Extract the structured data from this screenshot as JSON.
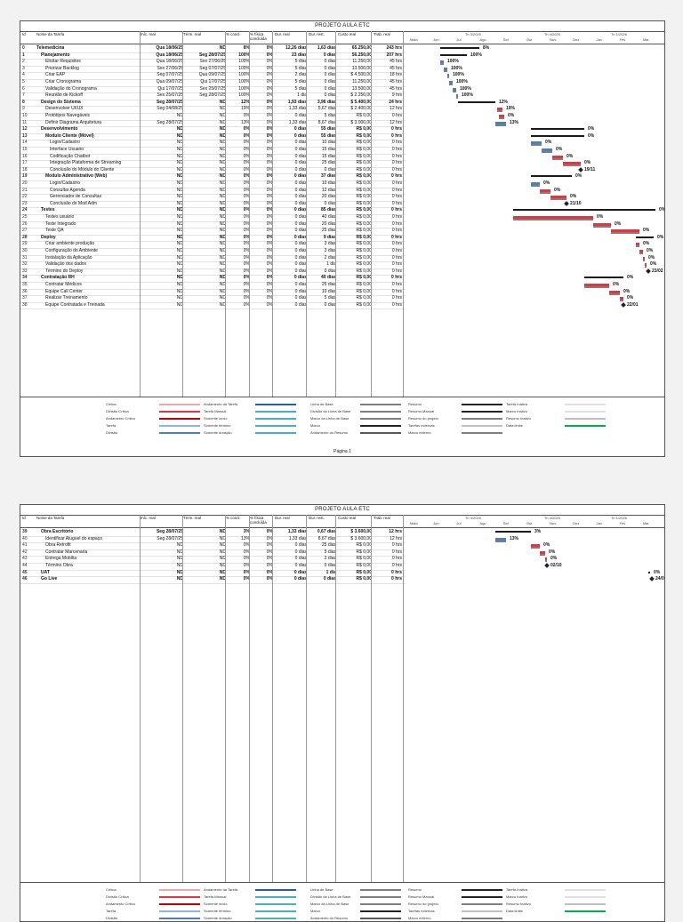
{
  "project_title": "PROJETO AULA ETC",
  "columns": [
    "Id",
    "Nome da Tarefa",
    "Iníc. real",
    "Térm. real",
    "% concl.",
    "% física concluída",
    "Dur. real",
    "Dur. rest.",
    "Custo real",
    "Trab. real"
  ],
  "timescale_top": [
    "Tri 3/2025",
    "Tri 4/2025",
    "Tri 1/2026"
  ],
  "timescale_months": [
    "Maio",
    "Jun",
    "Jul",
    "Ago",
    "Set",
    "Out",
    "Nov",
    "Dez",
    "Jan",
    "Fev",
    "Mar"
  ],
  "page1_rows": [
    {
      "id": "0",
      "name": "Telemedicina",
      "start": "Qua 18/06/25",
      "end": "ND",
      "pct": "8%",
      "phys": "0%",
      "dur": "12,26 dias",
      "rest": "1,63 dias",
      "cost": "65.250,00",
      "work": "243 hrs",
      "level": 0,
      "bold": true,
      "gpct": "8%"
    },
    {
      "id": "1",
      "name": "Planejamento",
      "start": "Qua 18/06/25",
      "end": "Seg 28/07/25",
      "pct": "100%",
      "phys": "0%",
      "dur": "23 dias",
      "rest": "0 dias",
      "cost": "56.250,00",
      "work": "207 hrs",
      "level": 1,
      "bold": true,
      "gpct": "100%"
    },
    {
      "id": "2",
      "name": "Elicitar Requisitos",
      "start": "Qua 18/06/25",
      "end": "Sex 27/06/25",
      "pct": "100%",
      "phys": "0%",
      "dur": "5 dias",
      "rest": "0 dias",
      "cost": "11.250,00",
      "work": "45 hrs",
      "level": 2,
      "gpct": "100%"
    },
    {
      "id": "3",
      "name": "Priorizar Backlog",
      "start": "Sex 27/06/25",
      "end": "Seg 07/07/25",
      "pct": "100%",
      "phys": "0%",
      "dur": "5 dias",
      "rest": "0 dias",
      "cost": "13.500,00",
      "work": "45 hrs",
      "level": 2,
      "gpct": "100%"
    },
    {
      "id": "4",
      "name": "Criar EAP",
      "start": "Seg 07/07/25",
      "end": "Qua 09/07/25",
      "pct": "100%",
      "phys": "0%",
      "dur": "2 dias",
      "rest": "0 dias",
      "cost": "$ 4.500,00",
      "work": "18 hrs",
      "level": 2,
      "gpct": "100%"
    },
    {
      "id": "5",
      "name": "Criar Cronograma",
      "start": "Qua 09/07/25",
      "end": "Qui 17/07/25",
      "pct": "100%",
      "phys": "0%",
      "dur": "5 dias",
      "rest": "0 dias",
      "cost": "11.250,00",
      "work": "45 hrs",
      "level": 2,
      "gpct": "100%"
    },
    {
      "id": "6",
      "name": "Validação do Cronograma",
      "start": "Qui 17/07/25",
      "end": "Sex 25/07/25",
      "pct": "100%",
      "phys": "0%",
      "dur": "5 dias",
      "rest": "0 dias",
      "cost": "13.500,00",
      "work": "45 hrs",
      "level": 2,
      "gpct": "100%"
    },
    {
      "id": "7",
      "name": "Reunião de Kickoff",
      "start": "Sex 25/07/25",
      "end": "Seg 28/07/25",
      "pct": "100%",
      "phys": "0%",
      "dur": "1 dia",
      "rest": "0 dias",
      "cost": "$ 2.250,00",
      "work": "9 hrs",
      "level": 2,
      "gpct": "100%"
    },
    {
      "id": "8",
      "name": "Design do Sistema",
      "start": "Seg 28/07/25",
      "end": "ND",
      "pct": "12%",
      "phys": "0%",
      "dur": "1,93 dias",
      "rest": "3,96 dias",
      "cost": "$ 5.400,00",
      "work": "24 hrs",
      "level": 1,
      "bold": true,
      "gpct": "12%"
    },
    {
      "id": "9",
      "name": "Desenvolver UI/UX",
      "start": "Seg 04/08/25",
      "end": "ND",
      "pct": "19%",
      "phys": "0%",
      "dur": "1,33 dias",
      "rest": "5,67 dias",
      "cost": "$ 2.400,00",
      "work": "12 hrs",
      "level": 2,
      "gpct": "19%"
    },
    {
      "id": "10",
      "name": "Protótipos Navegáveis",
      "start": "ND",
      "end": "ND",
      "pct": "0%",
      "phys": "0%",
      "dur": "0 dias",
      "rest": "5 dias",
      "cost": "R$ 0,00",
      "work": "0 hrs",
      "level": 2,
      "gpct": "0%"
    },
    {
      "id": "11",
      "name": "Definir Diagrama Arquitetura",
      "start": "Seg 28/07/25",
      "end": "ND",
      "pct": "13%",
      "phys": "0%",
      "dur": "1,33 dias",
      "rest": "8,67 dias",
      "cost": "$ 3.000,00",
      "work": "12 hrs",
      "level": 2,
      "gpct": "13%"
    },
    {
      "id": "12",
      "name": "Desenvolvimento",
      "start": "ND",
      "end": "ND",
      "pct": "0%",
      "phys": "0%",
      "dur": "0 dias",
      "rest": "55 dias",
      "cost": "R$ 0,00",
      "work": "0 hrs",
      "level": 1,
      "bold": true,
      "gpct": "0%"
    },
    {
      "id": "13",
      "name": "Modulo Cliente (Móvel)",
      "start": "ND",
      "end": "ND",
      "pct": "0%",
      "phys": "0%",
      "dur": "0 dias",
      "rest": "55 dias",
      "cost": "R$ 0,00",
      "work": "0 hrs",
      "level": 2,
      "bold": true,
      "gpct": "0%"
    },
    {
      "id": "14",
      "name": "Login/Cadastro",
      "start": "ND",
      "end": "ND",
      "pct": "0%",
      "phys": "0%",
      "dur": "0 dias",
      "rest": "10 dias",
      "cost": "R$ 0,00",
      "work": "0 hrs",
      "level": 3,
      "gpct": "0%"
    },
    {
      "id": "15",
      "name": "Interface Usuario",
      "start": "ND",
      "end": "ND",
      "pct": "0%",
      "phys": "0%",
      "dur": "0 dias",
      "rest": "15 dias",
      "cost": "R$ 0,00",
      "work": "0 hrs",
      "level": 3,
      "gpct": "0%"
    },
    {
      "id": "16",
      "name": "Codificação Chatbot",
      "start": "ND",
      "end": "ND",
      "pct": "0%",
      "phys": "0%",
      "dur": "0 dias",
      "rest": "15 dias",
      "cost": "R$ 0,00",
      "work": "0 hrs",
      "level": 3,
      "gpct": "0%"
    },
    {
      "id": "17",
      "name": "Integração Plataforma de Streaming",
      "start": "ND",
      "end": "ND",
      "pct": "0%",
      "phys": "0%",
      "dur": "0 dias",
      "rest": "25 dias",
      "cost": "R$ 0,00",
      "work": "0 hrs",
      "level": 3,
      "gpct": "0%"
    },
    {
      "id": "18",
      "name": "Conclusão do Módulo do Cliente",
      "start": "ND",
      "end": "ND",
      "pct": "0%",
      "phys": "0%",
      "dur": "0 dias",
      "rest": "0 dias",
      "cost": "R$ 0,00",
      "work": "0 hrs",
      "level": 3,
      "gpct": "19/11",
      "milestone": true
    },
    {
      "id": "19",
      "name": "Modulo Administrativo (Web)",
      "start": "ND",
      "end": "ND",
      "pct": "0%",
      "phys": "0%",
      "dur": "0 dias",
      "rest": "37 dias",
      "cost": "R$ 0,00",
      "work": "0 hrs",
      "level": 2,
      "bold": true,
      "gpct": "0%"
    },
    {
      "id": "20",
      "name": "Login/Cadastro",
      "start": "ND",
      "end": "ND",
      "pct": "0%",
      "phys": "0%",
      "dur": "0 dias",
      "rest": "10 dias",
      "cost": "R$ 0,00",
      "work": "0 hrs",
      "level": 3,
      "gpct": "0%"
    },
    {
      "id": "21",
      "name": "Consultar Agenda",
      "start": "ND",
      "end": "ND",
      "pct": "0%",
      "phys": "0%",
      "dur": "0 dias",
      "rest": "12 dias",
      "cost": "R$ 0,00",
      "work": "0 hrs",
      "level": 3,
      "gpct": "0%"
    },
    {
      "id": "22",
      "name": "Gerenciador de Consultas",
      "start": "ND",
      "end": "ND",
      "pct": "0%",
      "phys": "0%",
      "dur": "0 dias",
      "rest": "20 dias",
      "cost": "R$ 0,00",
      "work": "0 hrs",
      "level": 3,
      "gpct": "0%"
    },
    {
      "id": "23",
      "name": "Conclusão do Mod Adm",
      "start": "ND",
      "end": "ND",
      "pct": "0%",
      "phys": "0%",
      "dur": "0 dias",
      "rest": "0 dias",
      "cost": "R$ 0,00",
      "work": "0 hrs",
      "level": 3,
      "gpct": "21/10",
      "milestone": true
    },
    {
      "id": "24",
      "name": "Testes",
      "start": "ND",
      "end": "ND",
      "pct": "0%",
      "phys": "0%",
      "dur": "0 dias",
      "rest": "85 dias",
      "cost": "R$ 0,00",
      "work": "0 hrs",
      "level": 1,
      "bold": true,
      "gpct": "0%"
    },
    {
      "id": "25",
      "name": "Testes usuário",
      "start": "ND",
      "end": "ND",
      "pct": "0%",
      "phys": "0%",
      "dur": "0 dias",
      "rest": "40 dias",
      "cost": "R$ 0,00",
      "work": "0 hrs",
      "level": 2,
      "gpct": "0%"
    },
    {
      "id": "26",
      "name": "Teste Integrado",
      "start": "ND",
      "end": "ND",
      "pct": "0%",
      "phys": "0%",
      "dur": "0 dias",
      "rest": "20 dias",
      "cost": "R$ 0,00",
      "work": "0 hrs",
      "level": 2,
      "gpct": "0%"
    },
    {
      "id": "27",
      "name": "Teste QA",
      "start": "ND",
      "end": "ND",
      "pct": "0%",
      "phys": "0%",
      "dur": "0 dias",
      "rest": "25 dias",
      "cost": "R$ 0,00",
      "work": "0 hrs",
      "level": 2,
      "gpct": "0%"
    },
    {
      "id": "28",
      "name": "Deploy",
      "start": "ND",
      "end": "ND",
      "pct": "0%",
      "phys": "0%",
      "dur": "0 dias",
      "rest": "9 dias",
      "cost": "R$ 0,00",
      "work": "0 hrs",
      "level": 1,
      "bold": true,
      "gpct": "0%"
    },
    {
      "id": "29",
      "name": "Criar ambiente produção",
      "start": "ND",
      "end": "ND",
      "pct": "0%",
      "phys": "0%",
      "dur": "0 dias",
      "rest": "3 dias",
      "cost": "R$ 0,00",
      "work": "0 hrs",
      "level": 2,
      "gpct": "0%"
    },
    {
      "id": "30",
      "name": "Configuração do Ambiente",
      "start": "ND",
      "end": "ND",
      "pct": "0%",
      "phys": "0%",
      "dur": "0 dias",
      "rest": "3 dias",
      "cost": "R$ 0,00",
      "work": "0 hrs",
      "level": 2,
      "gpct": "0%"
    },
    {
      "id": "31",
      "name": "Instalação da Aplicação",
      "start": "ND",
      "end": "ND",
      "pct": "0%",
      "phys": "0%",
      "dur": "0 dias",
      "rest": "2 dias",
      "cost": "R$ 0,00",
      "work": "0 hrs",
      "level": 2,
      "gpct": "0%"
    },
    {
      "id": "32",
      "name": "Validação dos dados",
      "start": "ND",
      "end": "ND",
      "pct": "0%",
      "phys": "0%",
      "dur": "0 dias",
      "rest": "1 dia",
      "cost": "R$ 0,00",
      "work": "0 hrs",
      "level": 2,
      "gpct": "0%"
    },
    {
      "id": "33",
      "name": "Término do Deploy",
      "start": "ND",
      "end": "ND",
      "pct": "0%",
      "phys": "0%",
      "dur": "0 dias",
      "rest": "0 dias",
      "cost": "R$ 0,00",
      "work": "0 hrs",
      "level": 2,
      "gpct": "23/02",
      "milestone": true
    },
    {
      "id": "34",
      "name": "Contratação RH",
      "start": "ND",
      "end": "ND",
      "pct": "0%",
      "phys": "0%",
      "dur": "0 dias",
      "rest": "40 dias",
      "cost": "R$ 0,00",
      "work": "0 hrs",
      "level": 1,
      "bold": true,
      "gpct": "0%"
    },
    {
      "id": "35",
      "name": "Contratar Médicos",
      "start": "ND",
      "end": "ND",
      "pct": "0%",
      "phys": "0%",
      "dur": "0 dias",
      "rest": "25 dias",
      "cost": "R$ 0,00",
      "work": "0 hrs",
      "level": 2,
      "gpct": "0%"
    },
    {
      "id": "36",
      "name": "Equipe Call Center",
      "start": "ND",
      "end": "ND",
      "pct": "0%",
      "phys": "0%",
      "dur": "0 dias",
      "rest": "10 dias",
      "cost": "R$ 0,00",
      "work": "0 hrs",
      "level": 2,
      "gpct": "0%"
    },
    {
      "id": "37",
      "name": "Realizar Treinamento",
      "start": "ND",
      "end": "ND",
      "pct": "0%",
      "phys": "0%",
      "dur": "0 dias",
      "rest": "5 dias",
      "cost": "R$ 0,00",
      "work": "0 hrs",
      "level": 2,
      "gpct": "0%"
    },
    {
      "id": "38",
      "name": "Equipe Contratada e Treinada",
      "start": "ND",
      "end": "ND",
      "pct": "0%",
      "phys": "0%",
      "dur": "0 dias",
      "rest": "0 dias",
      "cost": "R$ 0,00",
      "work": "0 hrs",
      "level": 2,
      "gpct": "22/01",
      "milestone": true
    }
  ],
  "page2_rows": [
    {
      "id": "39",
      "name": "Obra Escritório",
      "start": "Seg 28/07/25",
      "end": "ND",
      "pct": "3%",
      "phys": "0%",
      "dur": "1,33 dias",
      "rest": "0,67 dias",
      "cost": "$ 3.600,00",
      "work": "12 hrs",
      "level": 1,
      "bold": true,
      "gpct": "3%"
    },
    {
      "id": "40",
      "name": "Identificar Aluguel do espaço",
      "start": "Seg 28/07/25",
      "end": "ND",
      "pct": "13%",
      "phys": "0%",
      "dur": "1,33 dias",
      "rest": "8,67 dias",
      "cost": "$ 3.600,00",
      "work": "12 hrs",
      "level": 2,
      "gpct": "13%"
    },
    {
      "id": "41",
      "name": "Obra Retrofit",
      "start": "ND",
      "end": "ND",
      "pct": "0%",
      "phys": "0%",
      "dur": "0 dias",
      "rest": "25 dias",
      "cost": "R$ 0,00",
      "work": "0 hrs",
      "level": 2,
      "gpct": "0%"
    },
    {
      "id": "42",
      "name": "Contratar Marcenaria",
      "start": "ND",
      "end": "ND",
      "pct": "0%",
      "phys": "0%",
      "dur": "0 dias",
      "rest": "5 dias",
      "cost": "R$ 0,00",
      "work": "0 hrs",
      "level": 2,
      "gpct": "0%"
    },
    {
      "id": "43",
      "name": "Entrega Mobília",
      "start": "ND",
      "end": "ND",
      "pct": "0%",
      "phys": "0%",
      "dur": "0 dias",
      "rest": "2 dias",
      "cost": "R$ 0,00",
      "work": "0 hrs",
      "level": 2,
      "gpct": "0%"
    },
    {
      "id": "44",
      "name": "Término Obra",
      "start": "ND",
      "end": "ND",
      "pct": "0%",
      "phys": "0%",
      "dur": "0 dias",
      "rest": "0 dias",
      "cost": "R$ 0,00",
      "work": "0 hrs",
      "level": 2,
      "gpct": "02/10",
      "milestone": true
    },
    {
      "id": "45",
      "name": "UAT",
      "start": "ND",
      "end": "ND",
      "pct": "0%",
      "phys": "0%",
      "dur": "0 dias",
      "rest": "1 dia",
      "cost": "R$ 0,00",
      "work": "0 hrs",
      "level": 1,
      "bold": true,
      "gpct": "0%"
    },
    {
      "id": "46",
      "name": "Go Live",
      "start": "ND",
      "end": "ND",
      "pct": "0%",
      "phys": "0%",
      "dur": "0 dias",
      "rest": "0 dias",
      "cost": "R$ 0,00",
      "work": "0 hrs",
      "level": 1,
      "bold": true,
      "gpct": "24/02",
      "milestone": true
    }
  ],
  "legend": [
    {
      "label": "Crítica",
      "color": "#f4a6a6"
    },
    {
      "label": "Divisão Crítica",
      "color": "#e8323c"
    },
    {
      "label": "Andamento Crítico",
      "color": "#c00000"
    },
    {
      "label": "Tarefa",
      "color": "#8db4e2"
    },
    {
      "label": "Divisão",
      "color": "#4a80c0"
    },
    {
      "label": "Andamento da Tarefa",
      "color": "#1f5fa8"
    },
    {
      "label": "Tarefa Manual",
      "color": "#4bacc6"
    },
    {
      "label": "Somente início",
      "color": "#4bacc6"
    },
    {
      "label": "Somente término",
      "color": "#4bacc6"
    },
    {
      "label": "Somente duração",
      "color": "#4bacc6"
    },
    {
      "label": "Linha de Base",
      "color": "#7f7f7f"
    },
    {
      "label": "Divisão da Linha de Base",
      "color": "#7f7f7f"
    },
    {
      "label": "Marco da Linha de Base",
      "color": "#7f7f7f"
    },
    {
      "label": "Marco",
      "color": "#222222"
    },
    {
      "label": "Andamento do Resumo",
      "color": "#595959"
    },
    {
      "label": "Resumo",
      "color": "#222222"
    },
    {
      "label": "Resumo Manual",
      "color": "#222222"
    },
    {
      "label": "Resumo do projeto",
      "color": "#7f7f7f"
    },
    {
      "label": "Tarefas externas",
      "color": "#bfbfbf"
    },
    {
      "label": "Marco externo",
      "color": "#7f7f7f"
    },
    {
      "label": "Tarefa Inativa",
      "color": "#e0e0e0"
    },
    {
      "label": "Marco Inativo",
      "color": "#e0e0e0"
    },
    {
      "label": "Resumo Inativo",
      "color": "#bfbfbf"
    },
    {
      "label": "Data limite",
      "color": "#00b050"
    }
  ],
  "page_label": "Página 1",
  "colors": {
    "task": "#4a80c0",
    "critical": "#e8323c",
    "summary": "#1a1a1a",
    "baseline": "#7f7f7f"
  }
}
